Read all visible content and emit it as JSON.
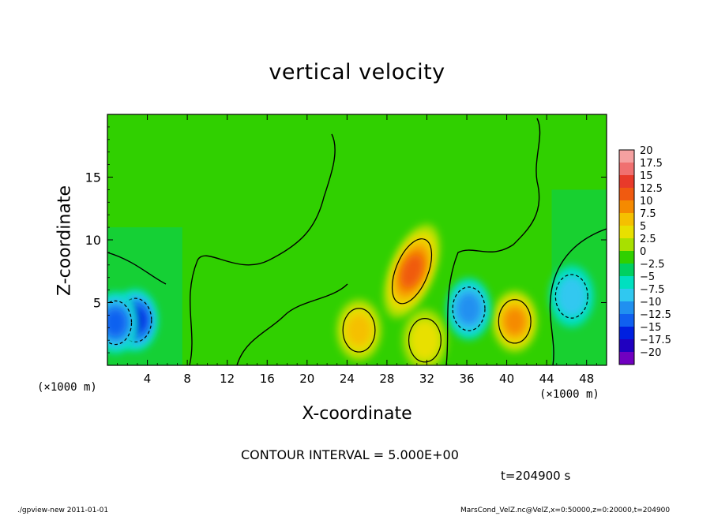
{
  "chart_data": {
    "type": "heatmap",
    "title": "vertical velocity",
    "xlabel": "X-coordinate",
    "ylabel": "Z-coordinate",
    "x_unit_label": "(×1000 m)",
    "xlim": [
      0,
      50
    ],
    "ylim": [
      0,
      20
    ],
    "x_ticks": [
      4,
      8,
      12,
      16,
      20,
      24,
      28,
      32,
      36,
      40,
      44,
      48
    ],
    "y_ticks": [
      5,
      10,
      15
    ],
    "colorbar": {
      "levels": [
        20,
        17.5,
        15,
        12.5,
        10,
        7.5,
        5,
        2.5,
        0,
        -2.5,
        -5,
        -7.5,
        -10,
        -12.5,
        -15,
        -17.5,
        -20
      ],
      "labels": [
        "20",
        "17.5",
        "15",
        "12.5",
        "10",
        "7.5",
        "5",
        "2.5",
        "0",
        "−2.5",
        "−5",
        "−7.5",
        "−10",
        "−12.5",
        "−15",
        "−17.5",
        "−20"
      ],
      "colors": [
        "#f5a0a0",
        "#f07070",
        "#e83a2a",
        "#f05a10",
        "#f58a00",
        "#f5c000",
        "#e8e000",
        "#a8e000",
        "#30d000",
        "#00d060",
        "#00e0c0",
        "#30c8f0",
        "#2090f0",
        "#1060f0",
        "#0020e0",
        "#2000c0",
        "#7000c0"
      ]
    },
    "features": [
      {
        "kind": "updraft",
        "x": 30.5,
        "z": 7.5,
        "max": 12.5
      },
      {
        "kind": "updraft",
        "x": 25.2,
        "z": 2.8,
        "max": 7.5
      },
      {
        "kind": "updraft",
        "x": 40.8,
        "z": 3.5,
        "max": 10
      },
      {
        "kind": "updraft",
        "x": 31.8,
        "z": 2.0,
        "max": 5
      },
      {
        "kind": "downdraft",
        "x": 2.8,
        "z": 3.6,
        "min": -12.5
      },
      {
        "kind": "downdraft",
        "x": 0.8,
        "z": 3.4,
        "min": -10
      },
      {
        "kind": "downdraft",
        "x": 36.2,
        "z": 4.5,
        "min": -7.5
      },
      {
        "kind": "downdraft",
        "x": 46.5,
        "z": 5.5,
        "min": -5
      }
    ],
    "contour_interval": "CONTOUR INTERVAL = 5.000E+00",
    "time_label": "t=204900 s"
  },
  "footer": {
    "left": "./gpview-new  2011-01-01",
    "right": "MarsCond_VelZ.nc@VelZ,x=0:50000,z=0:20000,t=204900"
  }
}
